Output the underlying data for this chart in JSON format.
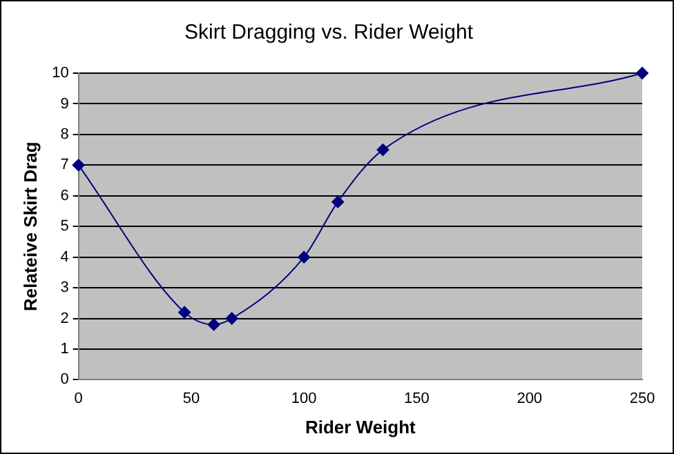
{
  "chart_data": {
    "type": "line",
    "title": "Skirt Dragging vs. Rider Weight",
    "xlabel": "Rider Weight",
    "ylabel": "Relateive Skirt Drag",
    "x": [
      0,
      47,
      60,
      68,
      100,
      115,
      135,
      250
    ],
    "series": [
      {
        "color": "#000080",
        "values": [
          7,
          2.2,
          1.8,
          2,
          4,
          5.8,
          7.5,
          10
        ]
      }
    ],
    "xlim": [
      0,
      250
    ],
    "xticks": [
      0,
      50,
      100,
      150,
      200,
      250
    ],
    "ylim": [
      0,
      10
    ],
    "yticks": [
      0,
      1,
      2,
      3,
      4,
      5,
      6,
      7,
      8,
      9,
      10
    ],
    "grid": "y",
    "legend": false,
    "marker": "diamond",
    "line_style": "solid"
  }
}
